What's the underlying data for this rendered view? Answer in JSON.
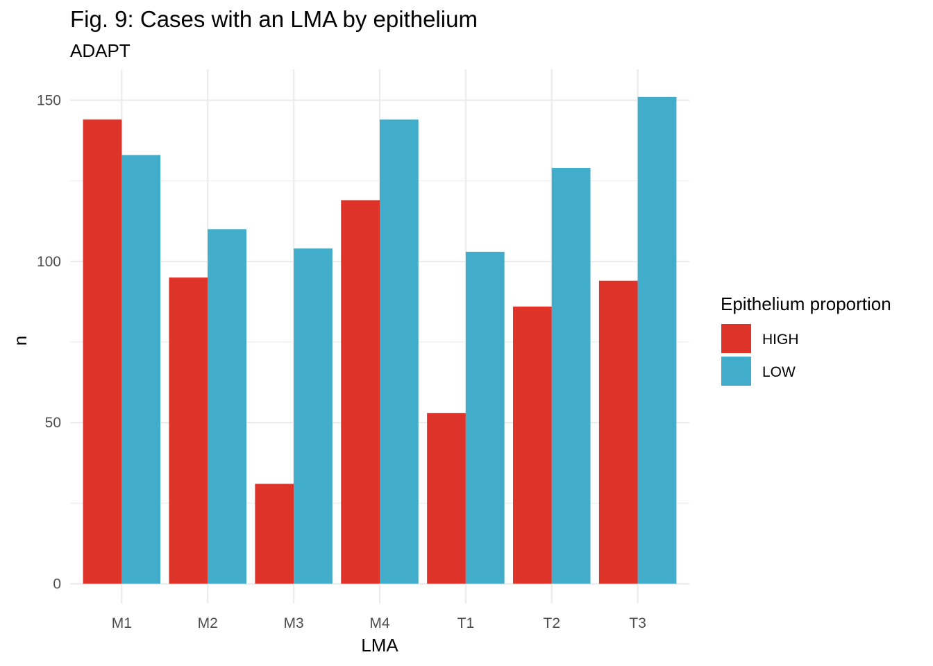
{
  "chart_data": {
    "type": "bar",
    "title": "Fig. 9: Cases with an LMA by epithelium",
    "subtitle": "ADAPT",
    "xlabel": "LMA",
    "ylabel": "n",
    "categories": [
      "M1",
      "M2",
      "M3",
      "M4",
      "T1",
      "T2",
      "T3"
    ],
    "series": [
      {
        "name": "HIGH",
        "color": "#dd3328",
        "values": [
          144,
          95,
          31,
          119,
          53,
          86,
          94
        ]
      },
      {
        "name": "LOW",
        "color": "#41adcb",
        "values": [
          133,
          110,
          104,
          144,
          103,
          129,
          151
        ]
      }
    ],
    "ylim": [
      0,
      157.55
    ],
    "yticks": [
      0,
      50,
      100,
      150
    ],
    "yticks_minor": [
      25,
      75,
      125
    ],
    "grid": true,
    "legend": {
      "title": "Epithelium proportion",
      "position": "right"
    }
  }
}
